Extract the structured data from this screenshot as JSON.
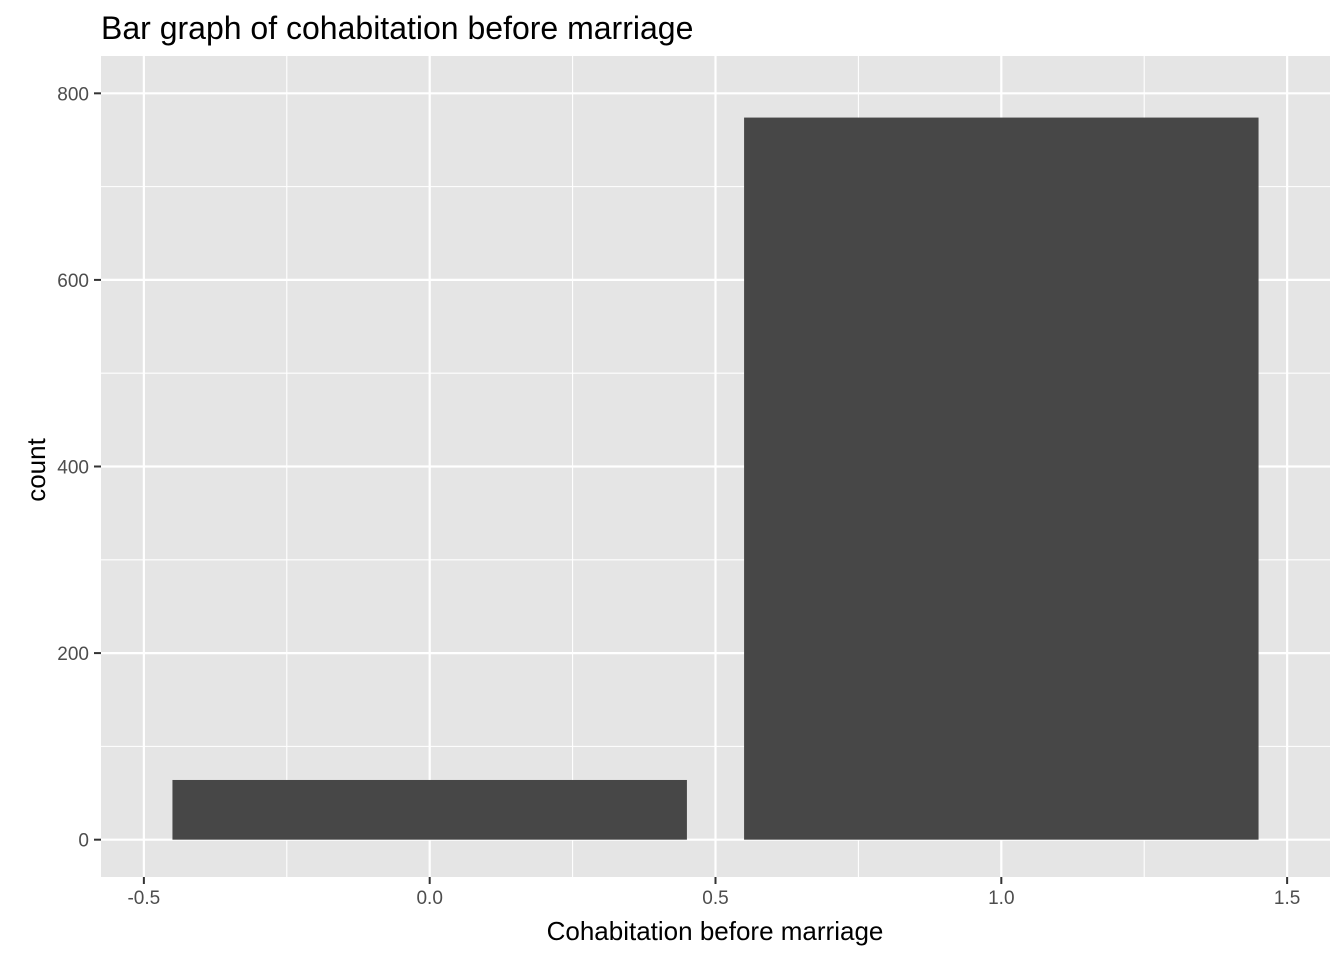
{
  "chart_data": {
    "type": "bar",
    "title": "Bar graph of cohabitation before marriage",
    "xlabel": "Cohabitation before marriage",
    "ylabel": "count",
    "x": [
      0,
      1
    ],
    "values": [
      64,
      774
    ],
    "bar_width": 0.9,
    "xlim": [
      -0.5,
      1.5
    ],
    "ylim": [
      0,
      800
    ],
    "x_ticks": [
      -0.5,
      0,
      0.5,
      1,
      1.5
    ],
    "x_tick_labels": [
      "-0.5",
      "0.0",
      "0.5",
      "1.0",
      "1.5"
    ],
    "y_ticks": [
      0,
      200,
      400,
      600,
      800
    ],
    "y_tick_labels": [
      "0",
      "200",
      "400",
      "600",
      "800"
    ],
    "grid": true,
    "colors": {
      "panel": "#e5e5e5",
      "grid": "#ffffff",
      "bar": "#474747",
      "tick": "#333333"
    }
  }
}
